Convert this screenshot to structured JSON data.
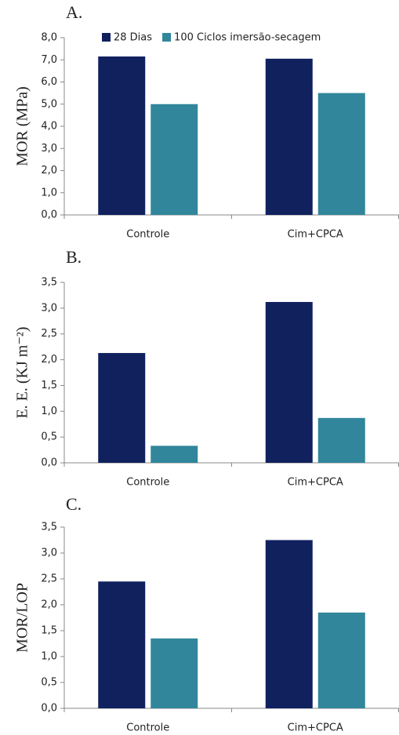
{
  "chart_data": [
    {
      "type": "bar",
      "title": "A.",
      "y_label": "MOR (MPa)",
      "categories": [
        "Controle",
        "Cim+CPCA"
      ],
      "series": [
        {
          "name": "28 Dias",
          "color": "#10215e",
          "values": [
            7.15,
            7.05
          ]
        },
        {
          "name": "100 Ciclos imersão-secagem",
          "color": "#31869b",
          "values": [
            5.0,
            5.5
          ]
        }
      ],
      "ylim": [
        0,
        8
      ],
      "yticks": [
        {
          "value": 0,
          "label": "0,0"
        },
        {
          "value": 1,
          "label": "1,0"
        },
        {
          "value": 2,
          "label": "2,0"
        },
        {
          "value": 3,
          "label": "3,0"
        },
        {
          "value": 4,
          "label": "4,0"
        },
        {
          "value": 5,
          "label": "5,0"
        },
        {
          "value": 6,
          "label": "6,0"
        },
        {
          "value": 7,
          "label": "7,0"
        },
        {
          "value": 8,
          "label": "8,0"
        }
      ],
      "legend": "top",
      "grid": false
    },
    {
      "type": "bar",
      "title": "B.",
      "y_label": "E. E. (KJ m⁻²)",
      "categories": [
        "Controle",
        "Cim+CPCA"
      ],
      "series": [
        {
          "color": "#10215e",
          "values": [
            2.13,
            3.12
          ]
        },
        {
          "color": "#31869b",
          "values": [
            0.33,
            0.87
          ]
        }
      ],
      "ylim": [
        0,
        3.5
      ],
      "yticks": [
        {
          "value": 0,
          "label": "0,0"
        },
        {
          "value": 0.5,
          "label": "0,5"
        },
        {
          "value": 1,
          "label": "1,0"
        },
        {
          "value": 1.5,
          "label": "1,5"
        },
        {
          "value": 2,
          "label": "2,0"
        },
        {
          "value": 2.5,
          "label": "2,5"
        },
        {
          "value": 3,
          "label": "3,0"
        },
        {
          "value": 3.5,
          "label": "3,5"
        }
      ],
      "grid": false
    },
    {
      "type": "bar",
      "title": "C.",
      "y_label": "MOR/LOP",
      "categories": [
        "Controle",
        "Cim+CPCA"
      ],
      "series": [
        {
          "color": "#10215e",
          "values": [
            2.45,
            3.25
          ]
        },
        {
          "color": "#31869b",
          "values": [
            1.35,
            1.85
          ]
        }
      ],
      "ylim": [
        0,
        3.5
      ],
      "yticks": [
        {
          "value": 0,
          "label": "0,0"
        },
        {
          "value": 0.5,
          "label": "0,5"
        },
        {
          "value": 1,
          "label": "1,0"
        },
        {
          "value": 1.5,
          "label": "1,5"
        },
        {
          "value": 2,
          "label": "2,0"
        },
        {
          "value": 2.5,
          "label": "2,5"
        },
        {
          "value": 3,
          "label": "3,0"
        },
        {
          "value": 3.5,
          "label": "3,5"
        }
      ],
      "grid": false
    }
  ]
}
